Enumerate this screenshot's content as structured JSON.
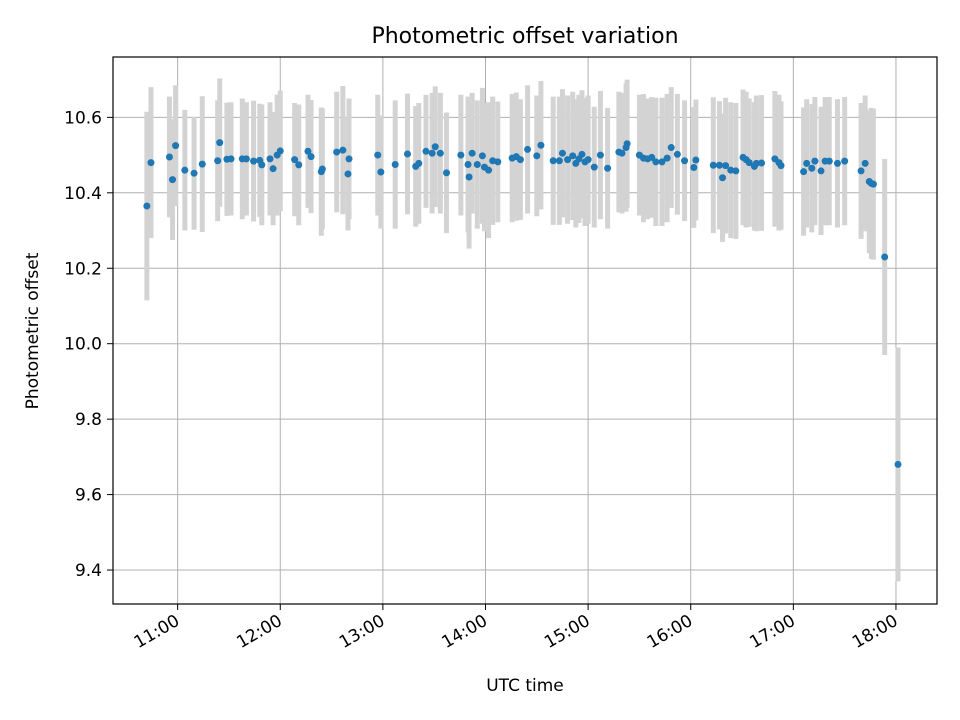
{
  "chart_data": {
    "type": "scatter",
    "title": "Photometric offset variation",
    "xlabel": "UTC time",
    "ylabel": "Photometric offset",
    "x_unit": "hours UTC",
    "xlim": [
      10.37,
      18.4
    ],
    "ylim": [
      9.31,
      10.76
    ],
    "x_ticks": [
      11,
      12,
      13,
      14,
      15,
      16,
      17,
      18
    ],
    "x_tick_labels": [
      "11:00",
      "12:00",
      "13:00",
      "14:00",
      "15:00",
      "16:00",
      "17:00",
      "18:00"
    ],
    "y_ticks": [
      9.4,
      9.6,
      9.8,
      10.0,
      10.2,
      10.4,
      10.6
    ],
    "y_tick_labels": [
      "9.4",
      "9.6",
      "9.8",
      "10.0",
      "10.2",
      "10.4",
      "10.6"
    ],
    "grid": true,
    "colors": {
      "points": "#1f77b4",
      "error_bars": "#d3d3d3",
      "grid": "#b0b0b0"
    },
    "series": [
      {
        "x": [
          10.7,
          10.74,
          10.92,
          10.95,
          10.98,
          11.07,
          11.16,
          11.24,
          11.39,
          11.41,
          11.48,
          11.52,
          11.63,
          11.67,
          11.74,
          11.8,
          11.82,
          11.9,
          11.93,
          11.97,
          12.0,
          12.14,
          12.18,
          12.27,
          12.3,
          12.4,
          12.41,
          12.55,
          12.61,
          12.66,
          12.67,
          12.95,
          12.98,
          13.12,
          13.24,
          13.32,
          13.35,
          13.42,
          13.48,
          13.51,
          13.56,
          13.62,
          13.76,
          13.83,
          13.84,
          13.87,
          13.92,
          13.97,
          13.99,
          14.03,
          14.07,
          14.12,
          14.26,
          14.3,
          14.34,
          14.41,
          14.5,
          14.54,
          14.66,
          14.72,
          14.75,
          14.8,
          14.85,
          14.88,
          14.91,
          14.94,
          14.97,
          15.0,
          15.06,
          15.12,
          15.19,
          15.3,
          15.33,
          15.37,
          15.38,
          15.5,
          15.54,
          15.58,
          15.62,
          15.66,
          15.72,
          15.77,
          15.81,
          15.87,
          15.94,
          16.03,
          16.05,
          16.22,
          16.28,
          16.31,
          16.34,
          16.39,
          16.44,
          16.51,
          16.54,
          16.57,
          16.62,
          16.64,
          16.69,
          16.82,
          16.86,
          16.88,
          17.1,
          17.13,
          17.18,
          17.21,
          17.27,
          17.31,
          17.35,
          17.43,
          17.5,
          17.66,
          17.7,
          17.74,
          17.76,
          17.78,
          17.89,
          18.02
        ],
        "y": [
          10.365,
          10.48,
          10.495,
          10.435,
          10.525,
          10.46,
          10.452,
          10.476,
          10.485,
          10.533,
          10.489,
          10.49,
          10.49,
          10.49,
          10.484,
          10.486,
          10.474,
          10.49,
          10.464,
          10.5,
          10.511,
          10.488,
          10.474,
          10.51,
          10.496,
          10.456,
          10.463,
          10.508,
          10.513,
          10.45,
          10.49,
          10.5,
          10.455,
          10.475,
          10.503,
          10.47,
          10.478,
          10.51,
          10.505,
          10.522,
          10.505,
          10.453,
          10.5,
          10.475,
          10.442,
          10.505,
          10.475,
          10.498,
          10.468,
          10.46,
          10.485,
          10.482,
          10.492,
          10.496,
          10.488,
          10.515,
          10.498,
          10.526,
          10.485,
          10.485,
          10.505,
          10.488,
          10.498,
          10.478,
          10.49,
          10.502,
          10.482,
          10.488,
          10.468,
          10.5,
          10.465,
          10.508,
          10.505,
          10.52,
          10.53,
          10.5,
          10.492,
          10.49,
          10.494,
          10.482,
          10.482,
          10.492,
          10.52,
          10.502,
          10.485,
          10.467,
          10.487,
          10.473,
          10.473,
          10.44,
          10.472,
          10.46,
          10.458,
          10.494,
          10.488,
          10.48,
          10.47,
          10.478,
          10.479,
          10.49,
          10.48,
          10.472,
          10.456,
          10.478,
          10.465,
          10.484,
          10.458,
          10.484,
          10.484,
          10.478,
          10.484,
          10.458,
          10.478,
          10.43,
          10.425,
          10.423,
          10.23,
          9.68
        ],
        "err": [
          0.25,
          0.2,
          0.16,
          0.16,
          0.16,
          0.16,
          0.15,
          0.18,
          0.16,
          0.17,
          0.15,
          0.15,
          0.16,
          0.15,
          0.16,
          0.15,
          0.16,
          0.15,
          0.15,
          0.16,
          0.16,
          0.15,
          0.16,
          0.15,
          0.15,
          0.17,
          0.16,
          0.16,
          0.17,
          0.15,
          0.16,
          0.16,
          0.15,
          0.17,
          0.16,
          0.16,
          0.16,
          0.15,
          0.16,
          0.16,
          0.16,
          0.16,
          0.16,
          0.18,
          0.19,
          0.16,
          0.17,
          0.18,
          0.17,
          0.18,
          0.17,
          0.16,
          0.17,
          0.17,
          0.16,
          0.17,
          0.16,
          0.17,
          0.17,
          0.17,
          0.17,
          0.17,
          0.17,
          0.17,
          0.17,
          0.17,
          0.17,
          0.17,
          0.16,
          0.17,
          0.16,
          0.16,
          0.16,
          0.17,
          0.17,
          0.16,
          0.17,
          0.16,
          0.16,
          0.17,
          0.17,
          0.17,
          0.16,
          0.16,
          0.16,
          0.16,
          0.16,
          0.18,
          0.17,
          0.17,
          0.18,
          0.18,
          0.18,
          0.18,
          0.18,
          0.17,
          0.17,
          0.18,
          0.18,
          0.18,
          0.18,
          0.17,
          0.17,
          0.17,
          0.17,
          0.17,
          0.17,
          0.17,
          0.17,
          0.17,
          0.17,
          0.18,
          0.18,
          0.19,
          0.2,
          0.2,
          0.26,
          0.31
        ]
      }
    ]
  }
}
